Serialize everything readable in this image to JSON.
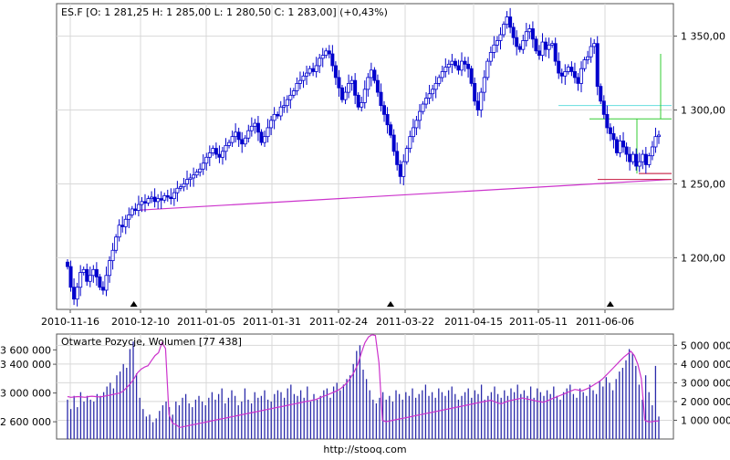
{
  "chart_data": [
    {
      "type": "candlestick",
      "title": "ES.F [O: 1 281,25  H: 1 285,00  L: 1 280,50  C: 1 283,00] (+0,43%)",
      "x_tick_labels": [
        "2010-11-16",
        "2010-12-10",
        "2011-01-05",
        "2011-01-31",
        "2011-02-24",
        "2011-03-22",
        "2011-04-15",
        "2011-05-11",
        "2011-06-06"
      ],
      "y_tick_labels": [
        "1 350,00",
        "1 300,00",
        "1 250,00",
        "1 200,00"
      ],
      "y_ticks": [
        1350,
        1300,
        1250,
        1200
      ],
      "ylim": [
        1165,
        1372
      ],
      "grid": true,
      "colors": {
        "candle": "#0000cc",
        "trendline": "#cc33cc",
        "fibo_cyan": "#66dddd",
        "fibo_green": "#33cc33",
        "fibo_red": "#cc3355",
        "marker": "#000000"
      },
      "closes": [
        1194,
        1180,
        1172,
        1180,
        1190,
        1192,
        1184,
        1188,
        1192,
        1187,
        1180,
        1178,
        1188,
        1198,
        1205,
        1214,
        1222,
        1221,
        1226,
        1229,
        1233,
        1232,
        1236,
        1238,
        1237,
        1240,
        1241,
        1238,
        1240,
        1239,
        1242,
        1241,
        1240,
        1244,
        1247,
        1248,
        1250,
        1253,
        1254,
        1256,
        1258,
        1260,
        1264,
        1268,
        1271,
        1274,
        1270,
        1268,
        1272,
        1276,
        1278,
        1282,
        1285,
        1280,
        1277,
        1281,
        1286,
        1289,
        1291,
        1285,
        1278,
        1282,
        1288,
        1293,
        1297,
        1296,
        1302,
        1303,
        1307,
        1310,
        1313,
        1318,
        1320,
        1323,
        1325,
        1328,
        1326,
        1330,
        1335,
        1337,
        1340,
        1338,
        1330,
        1322,
        1315,
        1307,
        1312,
        1318,
        1320,
        1310,
        1302,
        1305,
        1314,
        1322,
        1327,
        1320,
        1312,
        1303,
        1297,
        1290,
        1283,
        1272,
        1263,
        1255,
        1265,
        1274,
        1282,
        1288,
        1293,
        1299,
        1304,
        1308,
        1311,
        1314,
        1318,
        1322,
        1326,
        1329,
        1331,
        1333,
        1330,
        1327,
        1333,
        1331,
        1328,
        1318,
        1306,
        1300,
        1312,
        1322,
        1333,
        1339,
        1344,
        1347,
        1351,
        1358,
        1363,
        1356,
        1349,
        1343,
        1341,
        1347,
        1353,
        1355,
        1348,
        1340,
        1337,
        1346,
        1341,
        1344,
        1345,
        1333,
        1325,
        1323,
        1326,
        1329,
        1326,
        1322,
        1318,
        1328,
        1334,
        1336,
        1343,
        1345,
        1316,
        1306,
        1297,
        1288,
        1284,
        1280,
        1271,
        1279,
        1275,
        1270,
        1265,
        1270,
        1262,
        1265,
        1270,
        1263,
        1269,
        1275,
        1282,
        1283
      ],
      "candle_ranges": [
        {
          "from": 0,
          "to": 11,
          "low": 1170,
          "high": 1200
        }
      ],
      "trendline": {
        "from": "2010-12-10",
        "from_value": 1232,
        "to": "2011-06-30",
        "to_value": 1253
      },
      "markers": [
        "2010-12-10",
        "2011-03-17",
        "2011-06-08"
      ],
      "levels": [
        {
          "name": "cyan",
          "value": 1303
        },
        {
          "name": "green",
          "value": 1294
        },
        {
          "name": "red-upper",
          "value": 1257
        },
        {
          "name": "red-lower",
          "value": 1253
        }
      ]
    },
    {
      "type": "bar+line",
      "title": "Otwarte Pozycje, Wolumen [77 438]",
      "left_axis_labels": [
        "3 600 000",
        "3 400 000",
        "3 000 000",
        "2 600 000"
      ],
      "left_axis_values": [
        3600000,
        3400000,
        3000000,
        2600000
      ],
      "right_axis_labels": [
        "5 000 000",
        "4 000 000",
        "3 000 000",
        "2 000 000",
        "1 000 000"
      ],
      "right_axis_values": [
        5000000,
        4000000,
        3000000,
        2000000,
        1000000
      ],
      "volume_ylim": [
        0,
        5600000
      ],
      "oi_ylim": [
        2360000,
        3820000
      ],
      "volume": [
        2100000,
        1600000,
        2300000,
        1700000,
        2500000,
        2000000,
        2300000,
        2100000,
        2000000,
        2400000,
        2300000,
        2500000,
        2800000,
        3000000,
        2700000,
        3400000,
        3600000,
        4000000,
        3800000,
        4800000,
        5200000,
        3500000,
        2200000,
        1600000,
        1200000,
        1300000,
        900000,
        1100000,
        1500000,
        1800000,
        2000000,
        1700000,
        1300000,
        2000000,
        1800000,
        2200000,
        2400000,
        1900000,
        1700000,
        2100000,
        2300000,
        2000000,
        1800000,
        2200000,
        2500000,
        2100000,
        2400000,
        2700000,
        1900000,
        2200000,
        2600000,
        2300000,
        1800000,
        2000000,
        2700000,
        2100000,
        1900000,
        2500000,
        2200000,
        2300000,
        2600000,
        2100000,
        2000000,
        2400000,
        2600000,
        2500000,
        2200000,
        2700000,
        2900000,
        2400000,
        2300000,
        2600000,
        2200000,
        2800000,
        2000000,
        2400000,
        2100000,
        2300000,
        2600000,
        2700000,
        2200000,
        2800000,
        3000000,
        2600000,
        2900000,
        3200000,
        3400000,
        4000000,
        4700000,
        5000000,
        3700000,
        3200000,
        2600000,
        2100000,
        1900000,
        2200000,
        2500000,
        2100000,
        2300000,
        2000000,
        2600000,
        2400000,
        2100000,
        2500000,
        2300000,
        2700000,
        2200000,
        2400000,
        2600000,
        2900000,
        2300000,
        2500000,
        2200000,
        2700000,
        2500000,
        2300000,
        2600000,
        2800000,
        2400000,
        2100000,
        2300000,
        2500000,
        2700000,
        2200000,
        2600000,
        2400000,
        2900000,
        2100000,
        2300000,
        2500000,
        2800000,
        2400000,
        2200000,
        2600000,
        2300000,
        2700000,
        2500000,
        2900000,
        2400000,
        2600000,
        2300000,
        2800000,
        2200000,
        2700000,
        2500000,
        2300000,
        2600000,
        2400000,
        2800000,
        2300000,
        2100000,
        2500000,
        2700000,
        2900000,
        2400000,
        2200000,
        2700000,
        2500000,
        2300000,
        2900000,
        2600000,
        2400000,
        3100000,
        2800000,
        3300000,
        3000000,
        2600000,
        3200000,
        3600000,
        3800000,
        4200000,
        4800000,
        4600000,
        3900000,
        2900000,
        2100000,
        3400000,
        2500000,
        1800000,
        3900000,
        1200000
      ],
      "open_interest": [
        2950000,
        2940000,
        2945000,
        2950000,
        2945000,
        2940000,
        2950000,
        2955000,
        2950000,
        2945000,
        2950000,
        2960000,
        2970000,
        2980000,
        2990000,
        3000000,
        3030000,
        3080000,
        3130000,
        3200000,
        3280000,
        3330000,
        3360000,
        3380000,
        3450000,
        3520000,
        3560000,
        3700000,
        3620000,
        2700000,
        2580000,
        2560000,
        2520000,
        2530000,
        2540000,
        2550000,
        2560000,
        2570000,
        2580000,
        2590000,
        2600000,
        2610000,
        2620000,
        2630000,
        2640000,
        2650000,
        2660000,
        2670000,
        2680000,
        2690000,
        2700000,
        2710000,
        2720000,
        2730000,
        2740000,
        2750000,
        2760000,
        2770000,
        2780000,
        2790000,
        2800000,
        2810000,
        2820000,
        2830000,
        2840000,
        2850000,
        2860000,
        2870000,
        2880000,
        2890000,
        2900000,
        2910000,
        2930000,
        2950000,
        2970000,
        2990000,
        3010000,
        3030000,
        3060000,
        3100000,
        3150000,
        3220000,
        3300000,
        3400000,
        3560000,
        3700000,
        3780000,
        3810000,
        3800000,
        3420000,
        2620000,
        2600000,
        2610000,
        2620000,
        2630000,
        2640000,
        2650000,
        2660000,
        2670000,
        2680000,
        2690000,
        2700000,
        2710000,
        2720000,
        2730000,
        2740000,
        2750000,
        2760000,
        2770000,
        2780000,
        2790000,
        2800000,
        2810000,
        2820000,
        2830000,
        2840000,
        2850000,
        2860000,
        2870000,
        2880000,
        2890000,
        2900000,
        2880000,
        2860000,
        2850000,
        2870000,
        2890000,
        2900000,
        2910000,
        2920000,
        2930000,
        2920000,
        2910000,
        2900000,
        2890000,
        2880000,
        2870000,
        2890000,
        2910000,
        2930000,
        2950000,
        2970000,
        2990000,
        3010000,
        3030000,
        3050000,
        3040000,
        3030000,
        3050000,
        3070000,
        3100000,
        3130000,
        3160000,
        3200000,
        3250000,
        3300000,
        3350000,
        3400000,
        3450000,
        3500000,
        3540000,
        3580000,
        3520000,
        3400000,
        3200000,
        2620000,
        2600000,
        2600000,
        2610000,
        2610000
      ],
      "colors": {
        "volume": "#2a2aaa",
        "open_interest": "#cc33cc"
      }
    }
  ],
  "footer": {
    "url": "http://stooq.com"
  }
}
